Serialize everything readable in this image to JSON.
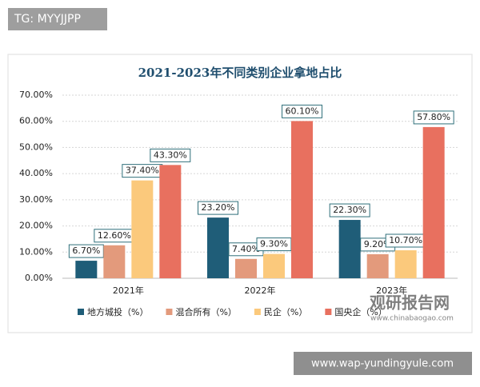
{
  "chart_data": {
    "type": "bar",
    "title": "2021-2023年不同类别企业拿地占比",
    "categories": [
      "2021年",
      "2022年",
      "2023年"
    ],
    "series": [
      {
        "name": "地方城投（%）",
        "color": "#1f5d78",
        "values": [
          6.7,
          23.2,
          22.3
        ],
        "value_labels": [
          "6.70%",
          "23.20%",
          "22.30%"
        ]
      },
      {
        "name": "混合所有（%）",
        "color": "#e39a7c",
        "values": [
          12.6,
          7.4,
          9.2
        ],
        "value_labels": [
          "12.60%",
          "7.40%",
          "9.20%"
        ]
      },
      {
        "name": "民企（%）",
        "color": "#fbc97c",
        "values": [
          37.4,
          9.3,
          10.7
        ],
        "value_labels": [
          "37.40%",
          "9.30%",
          "10.70%"
        ]
      },
      {
        "name": "国央企（%）",
        "color": "#e8705f",
        "values": [
          43.3,
          60.1,
          57.8
        ],
        "value_labels": [
          "43.30%",
          "60.10%",
          "57.80%"
        ]
      }
    ],
    "ylim": [
      0,
      70
    ],
    "yticks": [
      {
        "value": 0,
        "label": "0.00%"
      },
      {
        "value": 10,
        "label": "10.00%"
      },
      {
        "value": 20,
        "label": "20.00%"
      },
      {
        "value": 30,
        "label": "30.00%"
      },
      {
        "value": 40,
        "label": "40.00%"
      },
      {
        "value": 50,
        "label": "50.00%"
      },
      {
        "value": 60,
        "label": "60.00%"
      },
      {
        "value": 70,
        "label": "70.00%"
      }
    ],
    "grid": true
  },
  "overlay": {
    "tag": "TG: MYYJJPP",
    "site": "www.wap-yundingyule.com",
    "watermark": "观研报告网",
    "watermark_url": "www.chinabaogao.com"
  }
}
